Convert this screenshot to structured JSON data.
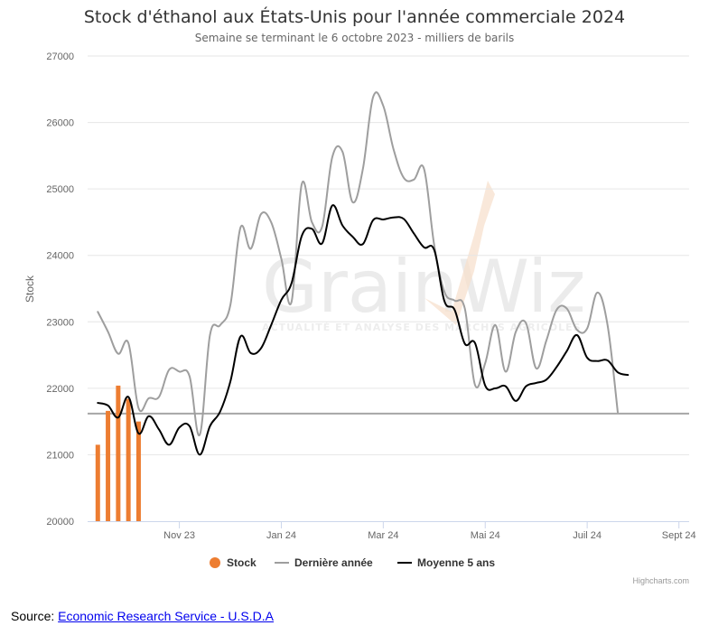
{
  "chart_data": {
    "type": "line",
    "title": "Stock d'éthanol aux États-Unis pour l'année commerciale 2024",
    "subtitle": "Semaine se terminant le 6 octobre 2023 - milliers de barils",
    "ylabel": "Stock",
    "xlabel": "",
    "ylim": [
      20000,
      27000
    ],
    "y_ticks": [
      20000,
      21000,
      22000,
      23000,
      24000,
      25000,
      26000,
      27000
    ],
    "x_range": [
      0,
      59
    ],
    "x_ticks": [
      {
        "pos": 9,
        "label": "Nov 23"
      },
      {
        "pos": 19,
        "label": "Jan 24"
      },
      {
        "pos": 29,
        "label": "Mar 24"
      },
      {
        "pos": 39,
        "label": "Mai 24"
      },
      {
        "pos": 49,
        "label": "Juil 24"
      },
      {
        "pos": 58,
        "label": "Sept 24"
      }
    ],
    "legend_position": "bottom-center",
    "plot_line": {
      "value": 21620,
      "color": "#a6a6a6"
    },
    "series": [
      {
        "name": "Stock",
        "type": "column",
        "color": "#ed7d31",
        "points": [
          [
            1,
            21150
          ],
          [
            2,
            21660
          ],
          [
            3,
            22040
          ],
          [
            4,
            21840
          ],
          [
            5,
            21500
          ]
        ]
      },
      {
        "name": "Dernière année",
        "type": "spline",
        "color": "#9e9e9e",
        "points": [
          [
            1,
            23150
          ],
          [
            2,
            22850
          ],
          [
            3,
            22520
          ],
          [
            4,
            22680
          ],
          [
            5,
            21700
          ],
          [
            6,
            21850
          ],
          [
            7,
            21870
          ],
          [
            8,
            22280
          ],
          [
            9,
            22250
          ],
          [
            10,
            22180
          ],
          [
            11,
            21300
          ],
          [
            12,
            22800
          ],
          [
            13,
            22950
          ],
          [
            14,
            23250
          ],
          [
            15,
            24420
          ],
          [
            16,
            24100
          ],
          [
            17,
            24620
          ],
          [
            18,
            24500
          ],
          [
            19,
            23950
          ],
          [
            20,
            23300
          ],
          [
            21,
            25070
          ],
          [
            22,
            24500
          ],
          [
            23,
            24430
          ],
          [
            24,
            25480
          ],
          [
            25,
            25560
          ],
          [
            26,
            24800
          ],
          [
            27,
            25300
          ],
          [
            28,
            26380
          ],
          [
            29,
            26250
          ],
          [
            30,
            25600
          ],
          [
            31,
            25170
          ],
          [
            32,
            25140
          ],
          [
            33,
            25300
          ],
          [
            34,
            24150
          ],
          [
            35,
            23450
          ],
          [
            36,
            23320
          ],
          [
            37,
            23200
          ],
          [
            38,
            22050
          ],
          [
            39,
            22380
          ],
          [
            40,
            22950
          ],
          [
            41,
            22250
          ],
          [
            42,
            22850
          ],
          [
            43,
            22980
          ],
          [
            44,
            22300
          ],
          [
            45,
            22720
          ],
          [
            46,
            23180
          ],
          [
            47,
            23200
          ],
          [
            48,
            22880
          ],
          [
            49,
            22900
          ],
          [
            50,
            23440
          ],
          [
            51,
            22950
          ],
          [
            52,
            21640
          ]
        ]
      },
      {
        "name": "Moyenne 5 ans",
        "type": "spline",
        "color": "#000000",
        "points": [
          [
            1,
            21780
          ],
          [
            2,
            21740
          ],
          [
            3,
            21560
          ],
          [
            4,
            21870
          ],
          [
            5,
            21320
          ],
          [
            6,
            21580
          ],
          [
            7,
            21380
          ],
          [
            8,
            21150
          ],
          [
            9,
            21410
          ],
          [
            10,
            21430
          ],
          [
            11,
            21000
          ],
          [
            12,
            21430
          ],
          [
            13,
            21650
          ],
          [
            14,
            22100
          ],
          [
            15,
            22780
          ],
          [
            16,
            22530
          ],
          [
            17,
            22600
          ],
          [
            18,
            22950
          ],
          [
            19,
            23330
          ],
          [
            20,
            23580
          ],
          [
            21,
            24290
          ],
          [
            22,
            24400
          ],
          [
            23,
            24180
          ],
          [
            24,
            24750
          ],
          [
            25,
            24450
          ],
          [
            26,
            24280
          ],
          [
            27,
            24170
          ],
          [
            28,
            24530
          ],
          [
            29,
            24540
          ],
          [
            30,
            24570
          ],
          [
            31,
            24550
          ],
          [
            32,
            24330
          ],
          [
            33,
            24120
          ],
          [
            34,
            24080
          ],
          [
            35,
            23310
          ],
          [
            36,
            23180
          ],
          [
            37,
            22670
          ],
          [
            38,
            22680
          ],
          [
            39,
            22040
          ],
          [
            40,
            22000
          ],
          [
            41,
            22030
          ],
          [
            42,
            21810
          ],
          [
            43,
            22030
          ],
          [
            44,
            22080
          ],
          [
            45,
            22130
          ],
          [
            46,
            22320
          ],
          [
            47,
            22560
          ],
          [
            48,
            22800
          ],
          [
            49,
            22460
          ],
          [
            50,
            22410
          ],
          [
            51,
            22420
          ],
          [
            52,
            22240
          ],
          [
            53,
            22200
          ]
        ]
      }
    ],
    "watermark": {
      "name": "GrainWiz",
      "tagline": "ACTUALITÉ ET ANALYSE DES MARCHÉS AGRICOLES"
    },
    "credits": "Highcharts.com"
  },
  "source": {
    "prefix": "Source: ",
    "link_text": "Economic Research Service - U.S.D.A"
  },
  "icons": {
    "legend_stock": "circle-marker-icon",
    "legend_line": "line-marker-icon"
  }
}
